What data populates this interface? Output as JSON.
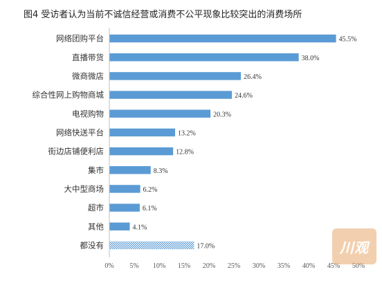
{
  "title": "图4  受访者认为当前不诚信经营或消费不公平现象比较突出的消费场所",
  "watermark": "川观",
  "chart_data": {
    "type": "bar",
    "orientation": "horizontal",
    "title": "图4  受访者认为当前不诚信经营或消费不公平现象比较突出的消费场所",
    "categories": [
      "网络团购平台",
      "直播带货",
      "微商微店",
      "综合性网上购物商城",
      "电视购物",
      "网络快送平台",
      "街边店铺便利店",
      "集市",
      "大中型商场",
      "超市",
      "其他",
      "都没有"
    ],
    "values": [
      45.5,
      38.0,
      26.4,
      24.6,
      20.3,
      13.2,
      12.8,
      8.3,
      6.2,
      6.1,
      4.1,
      17.0
    ],
    "value_labels": [
      "45.5%",
      "38.0%",
      "26.4%",
      "24.6%",
      "20.3%",
      "13.2%",
      "12.8%",
      "8.3%",
      "6.2%",
      "6.1%",
      "4.1%",
      "17.0%"
    ],
    "xlim": [
      0,
      50
    ],
    "xticks": [
      0,
      5,
      10,
      15,
      20,
      25,
      30,
      35,
      40,
      45,
      50
    ],
    "xtick_labels": [
      "0%",
      "5%",
      "10%",
      "15%",
      "20%",
      "25%",
      "30%",
      "35%",
      "40%",
      "45%",
      "50%"
    ],
    "bar_color": "#5b9bd5",
    "pattern_categories": [
      "都没有"
    ],
    "grid": false,
    "legend": "none"
  }
}
